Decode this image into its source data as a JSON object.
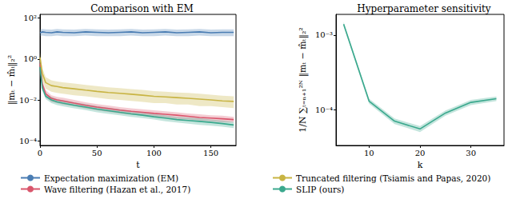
{
  "chart_data": [
    {
      "type": "line",
      "title": "Comparison with EM",
      "x_label": "t",
      "y_label": "‖mₜ − m̂ₜ‖₂²",
      "log": "y",
      "grid": false,
      "legend": "bottom",
      "xlim": [
        0,
        172
      ],
      "xticks": [
        0,
        50,
        100,
        150
      ],
      "ylim": [
        6e-05,
        150
      ],
      "yticks": [
        {
          "value": 0.0001,
          "label": "10⁻⁴"
        },
        {
          "value": 0.01,
          "label": "10⁻²"
        },
        {
          "value": 1,
          "label": "10⁰"
        },
        {
          "value": 100,
          "label": "10²"
        }
      ],
      "x": [
        0,
        2,
        5,
        10,
        15,
        20,
        30,
        40,
        50,
        60,
        70,
        80,
        90,
        100,
        110,
        120,
        130,
        140,
        150,
        160,
        170
      ],
      "series": [
        {
          "name": "Expectation maximization (EM)",
          "color": "#4a7db3",
          "values": [
            19,
            21,
            20,
            19,
            21,
            20,
            19,
            21,
            20,
            19,
            20,
            21,
            19,
            20,
            21,
            19,
            20,
            21,
            19,
            20,
            20
          ],
          "lower": [
            13,
            14,
            13,
            13,
            14,
            13,
            13,
            14,
            13,
            13,
            13,
            14,
            13,
            13,
            14,
            13,
            13,
            14,
            13,
            13,
            13
          ],
          "upper": [
            27,
            29,
            28,
            27,
            29,
            28,
            27,
            29,
            28,
            27,
            28,
            29,
            27,
            28,
            29,
            27,
            28,
            29,
            27,
            28,
            28
          ]
        },
        {
          "name": "Wave filtering (Hazan et al., 2017)",
          "color": "#d9566c",
          "values": [
            0.6,
            0.06,
            0.02,
            0.012,
            0.01,
            0.009,
            0.007,
            0.0055,
            0.0045,
            0.0038,
            0.0032,
            0.0028,
            0.0025,
            0.0022,
            0.002,
            0.0018,
            0.0016,
            0.0014,
            0.0013,
            0.0012,
            0.0011
          ],
          "lower": [
            0.4,
            0.04,
            0.014,
            0.008,
            0.007,
            0.006,
            0.005,
            0.0038,
            0.0031,
            0.0026,
            0.0022,
            0.0019,
            0.0017,
            0.0015,
            0.0014,
            0.0012,
            0.0011,
            0.001,
            0.0009,
            0.0008,
            0.0008
          ],
          "upper": [
            0.9,
            0.09,
            0.03,
            0.017,
            0.014,
            0.013,
            0.01,
            0.0077,
            0.0063,
            0.0053,
            0.0045,
            0.0039,
            0.0035,
            0.0031,
            0.0028,
            0.0025,
            0.0022,
            0.002,
            0.0018,
            0.0017,
            0.0015
          ]
        },
        {
          "name": "Truncated filtering (Tsiamis and Papas, 2020)",
          "color": "#c8b443",
          "values": [
            1.2,
            0.2,
            0.07,
            0.05,
            0.045,
            0.04,
            0.035,
            0.03,
            0.026,
            0.023,
            0.021,
            0.019,
            0.017,
            0.015,
            0.014,
            0.013,
            0.012,
            0.011,
            0.01,
            0.009,
            0.0085
          ],
          "lower": [
            0.6,
            0.1,
            0.035,
            0.025,
            0.022,
            0.02,
            0.017,
            0.015,
            0.013,
            0.011,
            0.01,
            0.009,
            0.008,
            0.007,
            0.007,
            0.006,
            0.006,
            0.005,
            0.005,
            0.0045,
            0.004
          ],
          "upper": [
            2,
            0.36,
            0.13,
            0.09,
            0.08,
            0.072,
            0.063,
            0.054,
            0.047,
            0.041,
            0.038,
            0.034,
            0.031,
            0.027,
            0.025,
            0.023,
            0.022,
            0.02,
            0.018,
            0.016,
            0.015
          ]
        },
        {
          "name": "SLIP (ours)",
          "color": "#3aa88d",
          "values": [
            0.4,
            0.04,
            0.015,
            0.01,
            0.008,
            0.007,
            0.0055,
            0.0045,
            0.0036,
            0.003,
            0.0025,
            0.0021,
            0.0018,
            0.0015,
            0.0013,
            0.0011,
            0.001,
            0.0009,
            0.0008,
            0.0007,
            0.0006
          ],
          "lower": [
            0.28,
            0.028,
            0.011,
            0.007,
            0.0056,
            0.0049,
            0.0039,
            0.0032,
            0.0025,
            0.0021,
            0.0018,
            0.0015,
            0.0013,
            0.0011,
            0.0009,
            0.0008,
            0.0007,
            0.0006,
            0.00056,
            0.0005,
            0.00042
          ],
          "upper": [
            0.56,
            0.056,
            0.021,
            0.014,
            0.011,
            0.0098,
            0.0077,
            0.0063,
            0.005,
            0.0042,
            0.0035,
            0.0029,
            0.0025,
            0.0021,
            0.0018,
            0.0015,
            0.0014,
            0.0013,
            0.0011,
            0.001,
            0.00084
          ]
        }
      ]
    },
    {
      "type": "line",
      "title": "Hyperparameter sensitivity",
      "x_label": "k",
      "y_label": "1/N ∑ₜ₌ₙ₊₁²ᴺ ‖mₜ − m̂ₜ‖₂²",
      "log": "y",
      "grid": false,
      "xlim": [
        3.5,
        36.5
      ],
      "xticks": [
        10,
        20,
        30
      ],
      "ylim": [
        3.3e-05,
        0.0019
      ],
      "yticks": [
        {
          "value": 0.0001,
          "label": "10⁻⁴"
        },
        {
          "value": 0.001,
          "label": "10⁻³"
        }
      ],
      "x": [
        5,
        10,
        15,
        20,
        25,
        30,
        35
      ],
      "series": [
        {
          "color": "#3aa88d",
          "values": [
            0.0014,
            0.00013,
            7e-05,
            5.5e-05,
            9e-05,
            0.000125,
            0.00014
          ],
          "lower": [
            0.0013,
            0.00012,
            6.4e-05,
            5e-05,
            8.3e-05,
            0.000115,
            0.00013
          ],
          "upper": [
            0.0015,
            0.00014,
            7.6e-05,
            6e-05,
            9.7e-05,
            0.000135,
            0.00015
          ]
        }
      ]
    }
  ]
}
